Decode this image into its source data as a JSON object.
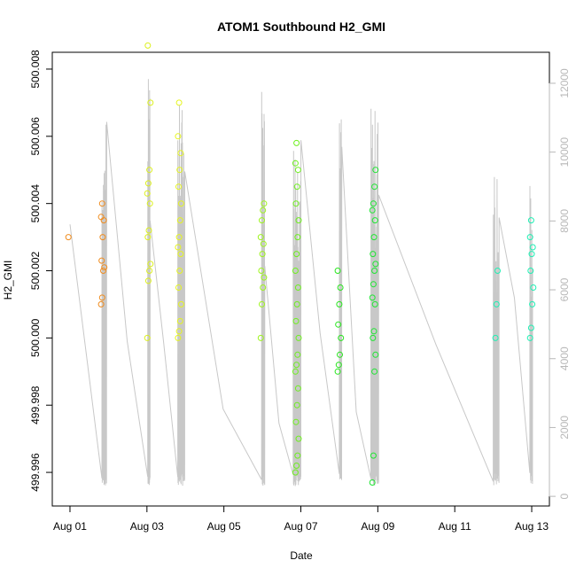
{
  "chart_data": {
    "type": "scatter",
    "title": "ATOM1 Southbound H2_GMI",
    "xlabel": "Date",
    "ylabel": "H2_GMI",
    "x_ticks": [
      {
        "label": "Aug 01",
        "day": 1
      },
      {
        "label": "Aug 03",
        "day": 3
      },
      {
        "label": "Aug 05",
        "day": 5
      },
      {
        "label": "Aug 07",
        "day": 7
      },
      {
        "label": "Aug 09",
        "day": 9
      },
      {
        "label": "Aug 11",
        "day": 11
      },
      {
        "label": "Aug 13",
        "day": 13
      }
    ],
    "xlim_days": [
      0.54,
      13.46
    ],
    "ylim": [
      499.995,
      500.0085
    ],
    "y_ticks": [
      "499.996",
      "499.998",
      "500.000",
      "500.002",
      "500.004",
      "500.006",
      "500.008"
    ],
    "y2_ticks": [
      "0",
      "2000",
      "4000",
      "6000",
      "8000",
      "10000",
      "12000"
    ],
    "y2lim": [
      -280,
      12900
    ],
    "grid": false,
    "line_color": "#c8c8c8",
    "series_points": [
      {
        "day": 1.0,
        "color": "#f08c1e",
        "values": [
          500.003
        ]
      },
      {
        "day": 1.85,
        "color": "#f08c1e",
        "values": [
          500.001,
          500.0012,
          500.002,
          500.0021,
          500.0023,
          500.003,
          500.0035,
          500.0036,
          500.004
        ]
      },
      {
        "day": 3.05,
        "color": "#dcf01e",
        "values": [
          500.0,
          500.0017,
          500.002,
          500.0022,
          500.003,
          500.0032,
          500.004,
          500.0043,
          500.0046,
          500.005,
          500.007,
          500.0087
        ]
      },
      {
        "day": 3.85,
        "color": "#e6f51e",
        "values": [
          500.0,
          500.0002,
          500.0005,
          500.001,
          500.0015,
          500.002,
          500.0025,
          500.0027,
          500.003,
          500.0035,
          500.004,
          500.0045,
          500.005,
          500.0055,
          500.006,
          500.007
        ]
      },
      {
        "day": 6.0,
        "color": "#9ef51e",
        "values": [
          500.0,
          500.001,
          500.0015,
          500.0018,
          500.002,
          500.0025,
          500.0028,
          500.003,
          500.0035,
          500.0038,
          500.004
        ]
      },
      {
        "day": 6.9,
        "color": "#6ef01e",
        "values": [
          499.996,
          499.9962,
          499.9965,
          499.997,
          499.9975,
          499.998,
          499.9985,
          499.999,
          499.9992,
          499.9995,
          500.0,
          500.0005,
          500.001,
          500.0015,
          500.002,
          500.0025,
          500.003,
          500.0035,
          500.004,
          500.0045,
          500.005,
          500.0052,
          500.0058
        ]
      },
      {
        "day": 8.0,
        "color": "#28e61e",
        "values": [
          499.999,
          499.9992,
          499.9995,
          500.0,
          500.0004,
          500.001,
          500.0015,
          500.002
        ]
      },
      {
        "day": 8.9,
        "color": "#1ee632",
        "values": [
          499.9957,
          499.9965,
          499.999,
          499.9995,
          500.0,
          500.0002,
          500.001,
          500.0012,
          500.0016,
          500.002,
          500.0022,
          500.0025,
          500.003,
          500.0035,
          500.0038,
          500.004,
          500.0045,
          500.005
        ]
      },
      {
        "day": 12.1,
        "color": "#1ef0b4",
        "values": [
          500.0,
          500.001,
          500.002
        ]
      },
      {
        "day": 13.0,
        "color": "#1ef0b4",
        "values": [
          500.0,
          500.0003,
          500.001,
          500.0015,
          500.002,
          500.0025,
          500.0027,
          500.003,
          500.0035
        ]
      }
    ]
  }
}
